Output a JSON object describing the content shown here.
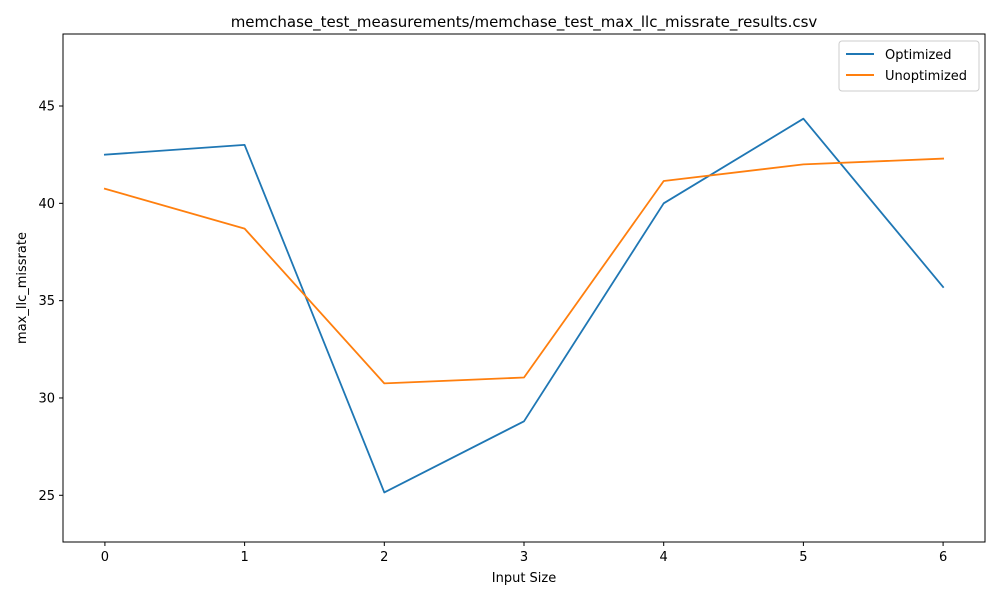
{
  "chart_data": {
    "type": "line",
    "title": "memchase_test_measurements/memchase_test_max_llc_missrate_results.csv",
    "xlabel": "Input Size",
    "ylabel": "max_llc_missrate",
    "x": [
      0,
      1,
      2,
      3,
      4,
      5,
      6
    ],
    "xticks": [
      "0",
      "1",
      "2",
      "3",
      "4",
      "5",
      "6"
    ],
    "xlim": [
      -0.3,
      6.3
    ],
    "yticks": [
      "25",
      "30",
      "35",
      "40",
      "45"
    ],
    "ylim": [
      22.6,
      48.7
    ],
    "grid": false,
    "legend_position": "top-right",
    "series": [
      {
        "name": "Optimized",
        "color": "#1f77b4",
        "values": [
          42.5,
          43.0,
          25.15,
          28.8,
          40.0,
          44.35,
          35.7
        ]
      },
      {
        "name": "Unoptimized",
        "color": "#ff7f0e",
        "values": [
          40.75,
          38.7,
          30.75,
          31.05,
          41.15,
          42.0,
          42.3
        ]
      }
    ]
  }
}
